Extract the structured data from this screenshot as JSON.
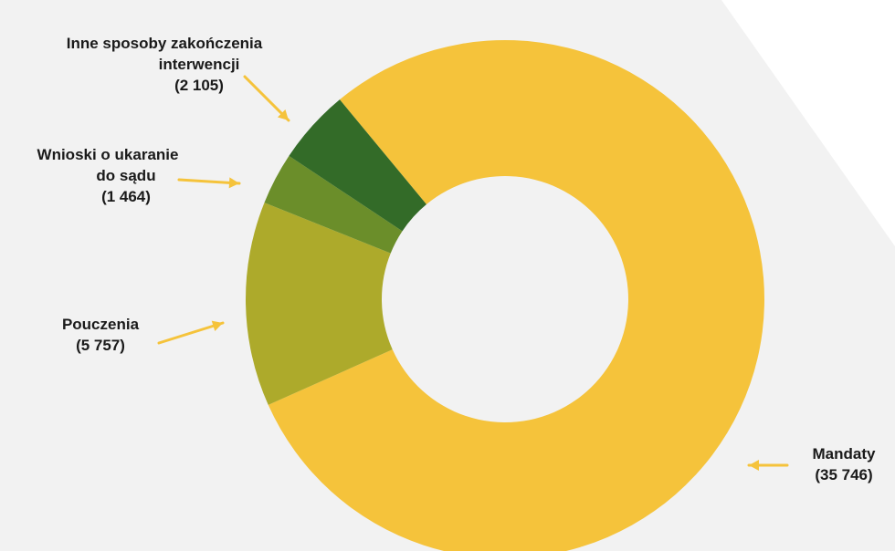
{
  "chart_data": {
    "type": "pie",
    "donut": true,
    "title": "",
    "slices": [
      {
        "label": "Mandaty",
        "value_text": "(35 746)",
        "value": 35746,
        "color": "#F5C33B"
      },
      {
        "label": "Pouczenia",
        "value_text": "(5 757)",
        "value": 5757,
        "color": "#ADAA2B"
      },
      {
        "label": "Wnioski o ukaranie do sądu",
        "label_lines": [
          "Wnioski o ukaranie",
          "do sądu"
        ],
        "value_text": "(1 464)",
        "value": 1464,
        "color": "#6B8E2A"
      },
      {
        "label": "Inne sposoby zakończenia interwencji",
        "label_lines": [
          "Inne sposoby zakończenia",
          "interwencji"
        ],
        "value_text": "(2 105)",
        "value": 2105,
        "color": "#336B28"
      }
    ]
  },
  "colors": {
    "background_shape": "#F2F2F2",
    "arrow": "#F5C33B",
    "text": "#1A1A1A"
  }
}
